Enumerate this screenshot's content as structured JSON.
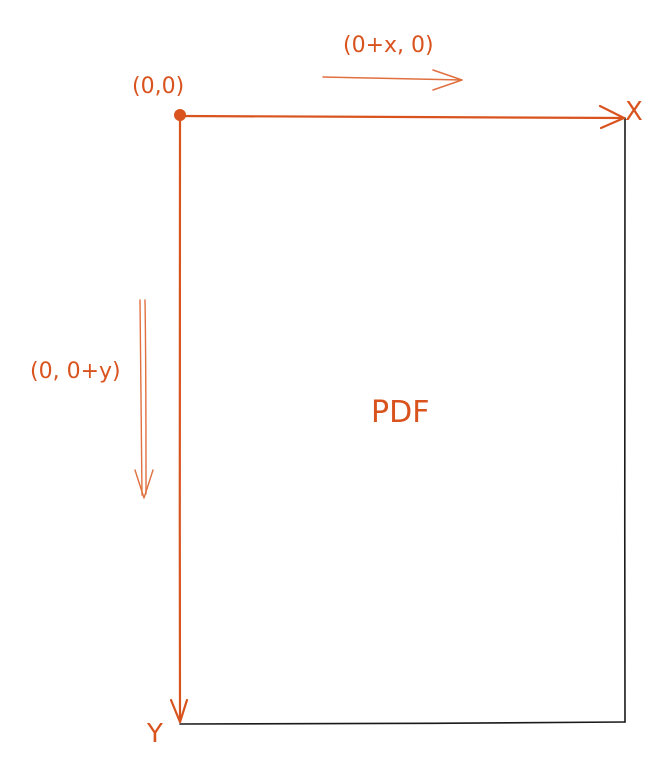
{
  "labels": {
    "origin": "(0,0)",
    "x_direction": "(0+x, 0)",
    "y_direction": "(0, 0+y)",
    "x_axis": "X",
    "y_axis": "Y",
    "page": "PDF"
  },
  "colors": {
    "accent": "#d9531e",
    "outline": "#1a1a1a",
    "background": "#ffffff"
  }
}
